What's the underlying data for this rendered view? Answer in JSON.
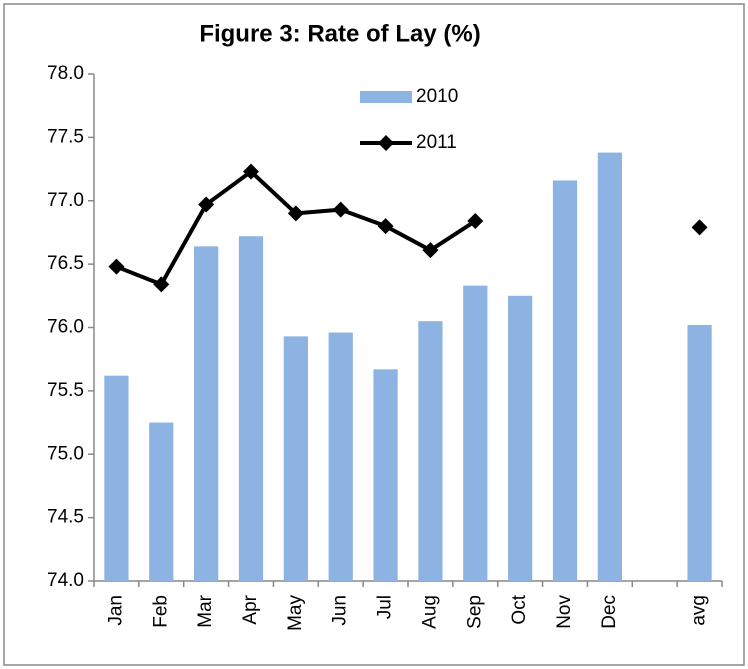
{
  "chart_data": {
    "type": "bar+line",
    "title": "Figure 3: Rate of Lay (%)",
    "categories": [
      "Jan",
      "Feb",
      "Mar",
      "Apr",
      "May",
      "Jun",
      "Jul",
      "Aug",
      "Sep",
      "Oct",
      "Nov",
      "Dec",
      null,
      "avg"
    ],
    "series": [
      {
        "name": "2010",
        "type": "bar",
        "color": "#8db3e2",
        "values": [
          75.62,
          75.25,
          76.64,
          76.72,
          75.93,
          75.96,
          75.67,
          76.05,
          76.33,
          76.25,
          77.16,
          77.38,
          null,
          76.02
        ]
      },
      {
        "name": "2011",
        "type": "line",
        "color": "#000000",
        "values": [
          76.48,
          76.34,
          76.97,
          77.23,
          76.9,
          76.93,
          76.8,
          76.61,
          76.84,
          null,
          null,
          null,
          null,
          76.79
        ]
      }
    ],
    "ylim": [
      74,
      78
    ],
    "yticks": [
      {
        "value": 74,
        "label": "74.0"
      },
      {
        "value": 74.5,
        "label": "74.5"
      },
      {
        "value": 75,
        "label": "75.0"
      },
      {
        "value": 75.5,
        "label": "75.5"
      },
      {
        "value": 76,
        "label": "76.0"
      },
      {
        "value": 76.5,
        "label": "76.5"
      },
      {
        "value": 77,
        "label": "77.0"
      },
      {
        "value": 77.5,
        "label": "77.5"
      },
      {
        "value": 78,
        "label": "78.0"
      }
    ],
    "grid": false
  }
}
